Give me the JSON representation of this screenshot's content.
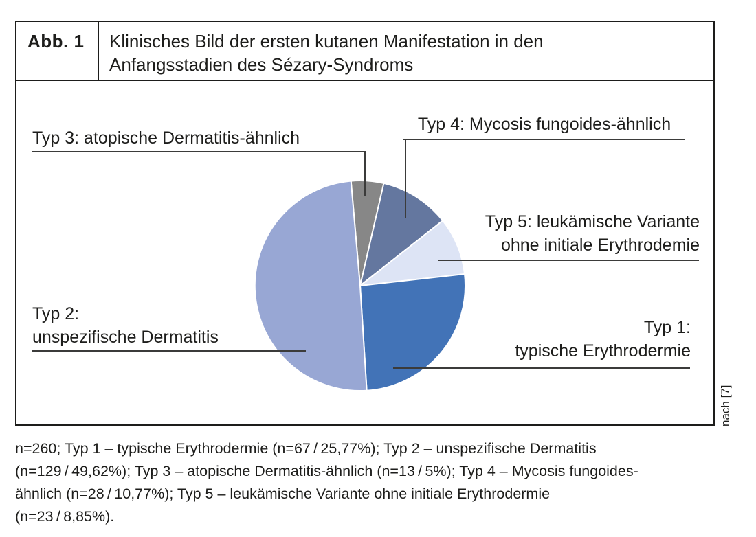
{
  "figure": {
    "number": "Abb. 1",
    "title_line1": "Klinisches Bild der ersten kutanen Manifestation in den",
    "title_line2": "Anfangsstadien des Sézary-Syndroms",
    "source_note": "nach [7]"
  },
  "chart_data": {
    "type": "pie",
    "title": "Klinisches Bild der ersten kutanen Manifestation in den Anfangsstadien des Sézary-Syndroms",
    "total_n": 260,
    "rotation_deg": -5,
    "legend_position": "callout-labels-around-pie",
    "separator_color": "#ffffff",
    "slices": [
      {
        "id": "typ3",
        "label": "Typ 3: atopische Dermatitis-ähnlich",
        "n": 13,
        "percent": 5.0,
        "color": "#878787"
      },
      {
        "id": "typ4",
        "label": "Typ 4: Mycosis fungoides-ähnlich",
        "n": 28,
        "percent": 10.77,
        "color": "#64779f"
      },
      {
        "id": "typ5",
        "label": "Typ 5: leukämische Variante ohne initiale Erythrodemie",
        "n": 23,
        "percent": 8.85,
        "color": "#dde4f5"
      },
      {
        "id": "typ1",
        "label": "Typ 1: typische Erythrodermie",
        "n": 67,
        "percent": 25.77,
        "color": "#4273b7"
      },
      {
        "id": "typ2",
        "label": "Typ 2: unspezifische Dermatitis",
        "n": 129,
        "percent": 49.62,
        "color": "#98a7d4"
      }
    ]
  },
  "callouts": {
    "typ3": {
      "line1": "Typ 3: atopische Dermatitis-ähnlich"
    },
    "typ4": {
      "line1": "Typ 4: Mycosis fungoides-ähnlich"
    },
    "typ5": {
      "line1": "Typ 5: leukämische Variante",
      "line2": "ohne initiale Erythrodemie"
    },
    "typ1": {
      "line1": "Typ 1:",
      "line2": "typische Erythrodermie"
    },
    "typ2": {
      "line1": "Typ 2:",
      "line2": "unspezifische Dermatitis"
    }
  },
  "caption": {
    "lines": [
      "n=260; Typ 1 – typische Erythrodermie (n=67 / 25,77%); Typ 2 – unspezifische Dermatitis",
      "(n=129 / 49,62%); Typ 3 – atopische Dermatitis-ähnlich (n=13 / 5%); Typ 4 – Mycosis fungoides-",
      "ähnlich (n=28 / 10,77%); Typ 5 – leukämische Variante ohne initiale Erythrodermie",
      "(n=23 / 8,85%)."
    ]
  }
}
